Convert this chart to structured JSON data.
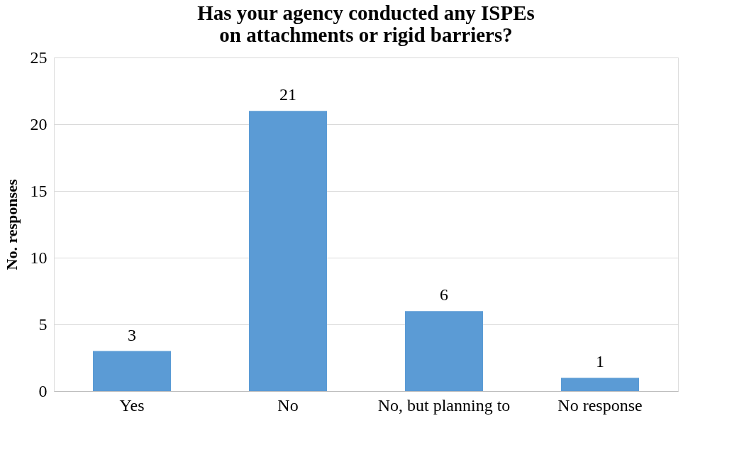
{
  "chart_data": {
    "type": "bar",
    "title": "Has your agency conducted any ISPEs on attachments or rigid barriers?",
    "ylabel": "No. responses",
    "categories": [
      "Yes",
      "No",
      "No, but planning to",
      "No response"
    ],
    "values": [
      3,
      21,
      6,
      1
    ],
    "color": "#5b9bd5",
    "ylim": [
      0,
      25
    ],
    "yticks": [
      0,
      5,
      10,
      15,
      20,
      25
    ],
    "grid": "y",
    "data_labels": true
  }
}
